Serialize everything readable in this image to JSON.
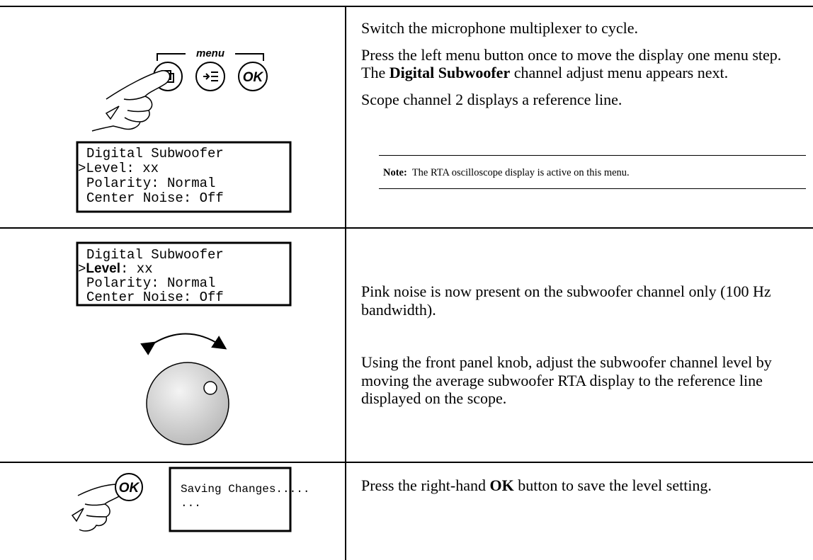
{
  "rows": [
    {
      "illustration": {
        "menu_label": "menu",
        "button_label": "OK",
        "lcd": [
          "Digital Subwoofer",
          ">Level: xx",
          "Polarity: Normal",
          "Center Noise: Off"
        ]
      },
      "paragraphs": [
        [
          "Switch the microphone multiplexer to cycle."
        ],
        [
          "Press the left menu button once to move the display one menu step. The",
          "Digital Subwoofer",
          "channel adjust menu appears next."
        ],
        [
          "Scope channel 2 displays a reference line."
        ]
      ],
      "note": {
        "label": "Note:",
        "text": "The RTA oscilloscope display is active on this menu."
      }
    },
    {
      "illustration": {
        "lcd": [
          [
            "Digital Subwoofer"
          ],
          [
            ">",
            "Level",
            ": xx"
          ],
          [
            "Polarity: Normal"
          ],
          [
            "Center Noise: Off"
          ]
        ]
      },
      "paragraphs": [
        [
          "Pink noise is now present on the subwoofer channel only (100 Hz bandwidth)."
        ],
        [
          "Using the front panel knob, adjust the subwoofer channel level by moving the average subwoofer RTA display to the reference line displayed on the scope."
        ]
      ]
    },
    {
      "illustration": {
        "button_label": "OK",
        "lcd": [
          "Saving Changes.....",
          "..."
        ]
      },
      "paragraphs": [
        [
          "Press the right-hand",
          "OK",
          "button to save the level setting."
        ]
      ]
    }
  ]
}
